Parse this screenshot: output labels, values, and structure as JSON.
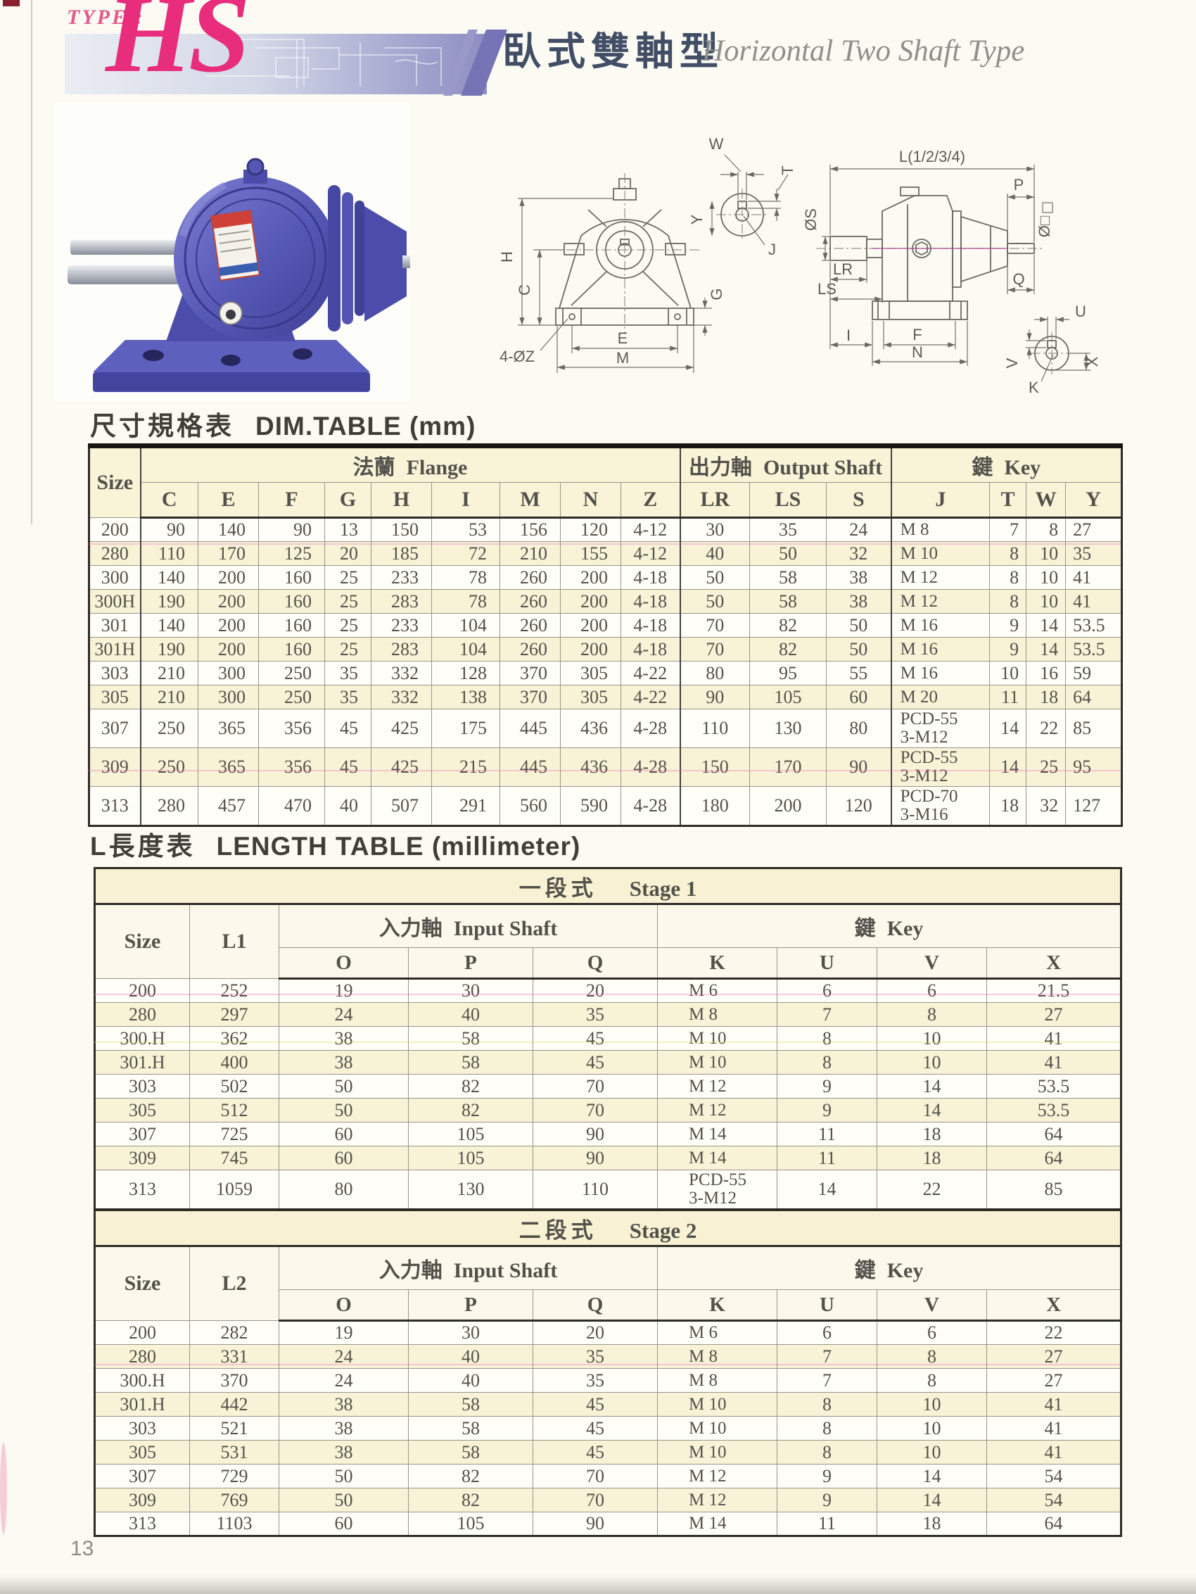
{
  "header": {
    "type_label": "TYPE :",
    "model": "HS",
    "title_cjk": "臥式雙軸型",
    "title_en": "Horizontal Two Shaft Type"
  },
  "dim_table": {
    "title_cjk": "尺寸規格表",
    "title_en": "DIM.TABLE (mm)",
    "size_label": "Size",
    "groups": {
      "flange_cjk": "法蘭",
      "flange_en": "Flange",
      "output_cjk": "出力軸",
      "output_en": "Output Shaft",
      "key_cjk": "鍵",
      "key_en": "Key"
    },
    "columns": [
      "C",
      "E",
      "F",
      "G",
      "H",
      "I",
      "M",
      "N",
      "Z",
      "LR",
      "LS",
      "S",
      "J",
      "T",
      "W",
      "Y"
    ],
    "rows": [
      [
        "200",
        "90",
        "140",
        "90",
        "13",
        "150",
        "53",
        "156",
        "120",
        "4-12",
        "30",
        "35",
        "24",
        "M 8",
        "7",
        "8",
        "27"
      ],
      [
        "280",
        "110",
        "170",
        "125",
        "20",
        "185",
        "72",
        "210",
        "155",
        "4-12",
        "40",
        "50",
        "32",
        "M 10",
        "8",
        "10",
        "35"
      ],
      [
        "300",
        "140",
        "200",
        "160",
        "25",
        "233",
        "78",
        "260",
        "200",
        "4-18",
        "50",
        "58",
        "38",
        "M 12",
        "8",
        "10",
        "41"
      ],
      [
        "300H",
        "190",
        "200",
        "160",
        "25",
        "283",
        "78",
        "260",
        "200",
        "4-18",
        "50",
        "58",
        "38",
        "M 12",
        "8",
        "10",
        "41"
      ],
      [
        "301",
        "140",
        "200",
        "160",
        "25",
        "233",
        "104",
        "260",
        "200",
        "4-18",
        "70",
        "82",
        "50",
        "M 16",
        "9",
        "14",
        "53.5"
      ],
      [
        "301H",
        "190",
        "200",
        "160",
        "25",
        "283",
        "104",
        "260",
        "200",
        "4-18",
        "70",
        "82",
        "50",
        "M 16",
        "9",
        "14",
        "53.5"
      ],
      [
        "303",
        "210",
        "300",
        "250",
        "35",
        "332",
        "128",
        "370",
        "305",
        "4-22",
        "80",
        "95",
        "55",
        "M 16",
        "10",
        "16",
        "59"
      ],
      [
        "305",
        "210",
        "300",
        "250",
        "35",
        "332",
        "138",
        "370",
        "305",
        "4-22",
        "90",
        "105",
        "60",
        "M 20",
        "11",
        "18",
        "64"
      ],
      [
        "307",
        "250",
        "365",
        "356",
        "45",
        "425",
        "175",
        "445",
        "436",
        "4-28",
        "110",
        "130",
        "80",
        "PCD-55\n3-M12",
        "14",
        "22",
        "85"
      ],
      [
        "309",
        "250",
        "365",
        "356",
        "45",
        "425",
        "215",
        "445",
        "436",
        "4-28",
        "150",
        "170",
        "90",
        "PCD-55\n3-M12",
        "14",
        "25",
        "95"
      ],
      [
        "313",
        "280",
        "457",
        "470",
        "40",
        "507",
        "291",
        "560",
        "590",
        "4-28",
        "180",
        "200",
        "120",
        "PCD-70\n3-M16",
        "18",
        "32",
        "127"
      ]
    ]
  },
  "length_table": {
    "title_cjk": "L長度表",
    "title_en": "LENGTH TABLE  (millimeter)",
    "size_label": "Size",
    "input_shaft_cjk": "入力軸",
    "input_shaft_en": "Input Shaft",
    "key_cjk": "鍵",
    "key_en": "Key",
    "stage1": {
      "band_cjk": "一段式",
      "band_en": "Stage 1",
      "l_label": "L1",
      "columns": [
        "O",
        "P",
        "Q",
        "K",
        "U",
        "V",
        "X"
      ],
      "rows": [
        [
          "200",
          "252",
          "19",
          "30",
          "20",
          "M 6",
          "6",
          "6",
          "21.5"
        ],
        [
          "280",
          "297",
          "24",
          "40",
          "35",
          "M 8",
          "7",
          "8",
          "27"
        ],
        [
          "300.H",
          "362",
          "38",
          "58",
          "45",
          "M 10",
          "8",
          "10",
          "41"
        ],
        [
          "301.H",
          "400",
          "38",
          "58",
          "45",
          "M 10",
          "8",
          "10",
          "41"
        ],
        [
          "303",
          "502",
          "50",
          "82",
          "70",
          "M 12",
          "9",
          "14",
          "53.5"
        ],
        [
          "305",
          "512",
          "50",
          "82",
          "70",
          "M 12",
          "9",
          "14",
          "53.5"
        ],
        [
          "307",
          "725",
          "60",
          "105",
          "90",
          "M 14",
          "11",
          "18",
          "64"
        ],
        [
          "309",
          "745",
          "60",
          "105",
          "90",
          "M 14",
          "11",
          "18",
          "64"
        ],
        [
          "313",
          "1059",
          "80",
          "130",
          "110",
          "PCD-55\n3-M12",
          "14",
          "22",
          "85"
        ]
      ]
    },
    "stage2": {
      "band_cjk": "二段式",
      "band_en": "Stage 2",
      "l_label": "L2",
      "columns": [
        "O",
        "P",
        "Q",
        "K",
        "U",
        "V",
        "X"
      ],
      "rows": [
        [
          "200",
          "282",
          "19",
          "30",
          "20",
          "M 6",
          "6",
          "6",
          "22"
        ],
        [
          "280",
          "331",
          "24",
          "40",
          "35",
          "M 8",
          "7",
          "8",
          "27"
        ],
        [
          "300.H",
          "370",
          "24",
          "40",
          "35",
          "M 8",
          "7",
          "8",
          "27"
        ],
        [
          "301.H",
          "442",
          "38",
          "58",
          "45",
          "M 10",
          "8",
          "10",
          "41"
        ],
        [
          "303",
          "521",
          "38",
          "58",
          "45",
          "M 10",
          "8",
          "10",
          "41"
        ],
        [
          "305",
          "531",
          "38",
          "58",
          "45",
          "M 10",
          "8",
          "10",
          "41"
        ],
        [
          "307",
          "729",
          "50",
          "82",
          "70",
          "M 12",
          "9",
          "14",
          "54"
        ],
        [
          "309",
          "769",
          "50",
          "82",
          "70",
          "M 12",
          "9",
          "14",
          "54"
        ],
        [
          "313",
          "1103",
          "60",
          "105",
          "90",
          "M 14",
          "11",
          "18",
          "64"
        ]
      ]
    }
  },
  "drawings": {
    "front": {
      "h": "H",
      "c": "C",
      "e": "E",
      "m": "M",
      "g": "G",
      "bolt_callout": "4-ØZ",
      "detail": {
        "w": "W",
        "t": "T",
        "y": "Y",
        "j": "J"
      }
    },
    "side": {
      "l": "L(1/2/3/4)",
      "os": "ØS",
      "lr": "LR",
      "ls": "LS",
      "p": "P",
      "q": "Q",
      "od": "Ø□",
      "i": "I",
      "f": "F",
      "n": "N",
      "detail": {
        "u": "U",
        "v": "V",
        "x": "X",
        "k": "K"
      }
    }
  },
  "footer": {
    "page_number": "13"
  }
}
